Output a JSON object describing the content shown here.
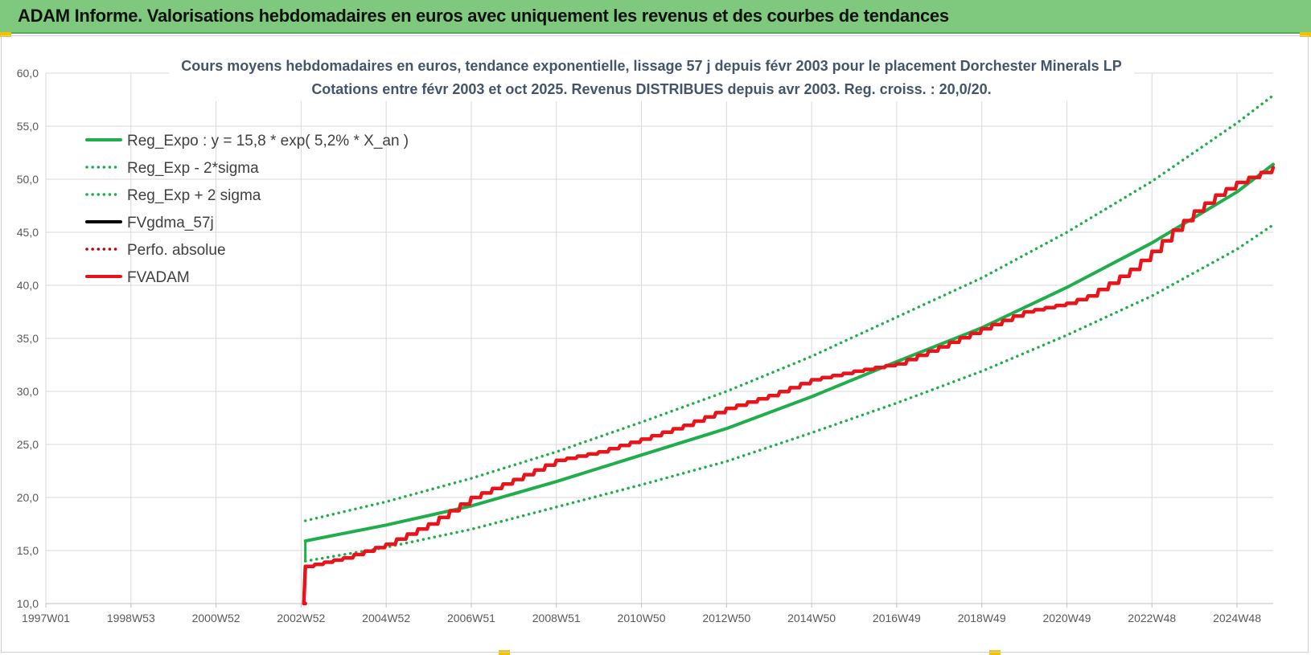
{
  "header": {
    "title": "ADAM Informe. Valorisations hebdomadaires en euros avec uniquement les revenus et des courbes de tendances"
  },
  "colors": {
    "banner": "#7ec97e",
    "reg_green": "#1fae4b",
    "fvadam_red": "#e8141c",
    "perf_red": "#c00000",
    "black": "#000000",
    "grid": "#d9d9d9"
  },
  "chart_data": {
    "type": "line",
    "title_lines": [
      "Cours moyens hebdomadaires en euros, tendance exponentielle, lissage 57 j depuis févr 2003 pour le placement Dorchester Minerals LP",
      "Cotations entre févr 2003 et oct 2025. Revenus DISTRIBUES depuis avr 2003. Reg. croiss. : 20,0/20."
    ],
    "xlabel": "",
    "ylabel": "",
    "ylim": [
      10,
      60
    ],
    "y_ticks": [
      "10,0",
      "15,0",
      "20,0",
      "25,0",
      "30,0",
      "35,0",
      "40,0",
      "45,0",
      "50,0",
      "55,0",
      "60,0"
    ],
    "x_ticks": [
      "1997W01",
      "1998W53",
      "2000W52",
      "2002W52",
      "2004W52",
      "2006W51",
      "2008W51",
      "2010W50",
      "2012W50",
      "2014W50",
      "2016W49",
      "2018W49",
      "2020W49",
      "2022W48",
      "2024W48"
    ],
    "x_tick_years": [
      1997.0,
      1999.0,
      2001.0,
      2003.0,
      2005.0,
      2007.0,
      2009.0,
      2011.0,
      2013.0,
      2015.0,
      2017.0,
      2019.0,
      2021.0,
      2023.0,
      2025.0
    ],
    "xlim": [
      1997.0,
      2025.85
    ],
    "grid": true,
    "legend_position": "top-left",
    "legend": [
      {
        "name": "Reg_Expo : y = 15,8 * exp( 5,2% *  X_an )",
        "style": "solid",
        "color": "#1fae4b"
      },
      {
        "name": "Reg_Exp - 2*sigma",
        "style": "dotted",
        "color": "#1fae4b"
      },
      {
        "name": "Reg_Exp + 2 sigma",
        "style": "dotted",
        "color": "#1fae4b"
      },
      {
        "name": "FVgdma_57j",
        "style": "solid",
        "color": "#000000"
      },
      {
        "name": "Perfo. absolue",
        "style": "dotted",
        "color": "#c00000"
      },
      {
        "name": "FVADAM",
        "style": "solid",
        "color": "#e8141c"
      }
    ],
    "series": [
      {
        "name": "Reg_Expo : y = 15,8 * exp( 5,2% *  X_an )",
        "style": "solid",
        "color": "#1fae4b",
        "x": [
          2003.1,
          2005.0,
          2007.0,
          2009.0,
          2011.0,
          2013.0,
          2015.0,
          2017.0,
          2019.0,
          2021.0,
          2023.0,
          2025.0,
          2025.85
        ],
        "y": [
          15.9,
          17.4,
          19.2,
          21.5,
          24.0,
          26.5,
          29.5,
          32.8,
          36.0,
          39.8,
          44.0,
          48.8,
          51.4
        ]
      },
      {
        "name": "Reg_Exp - 2*sigma",
        "style": "dotted",
        "color": "#1fae4b",
        "x": [
          2003.1,
          2005.0,
          2007.0,
          2009.0,
          2011.0,
          2013.0,
          2015.0,
          2017.0,
          2019.0,
          2021.0,
          2023.0,
          2025.0,
          2025.85
        ],
        "y": [
          14.0,
          15.3,
          17.0,
          19.1,
          21.2,
          23.4,
          26.1,
          28.9,
          31.9,
          35.3,
          39.0,
          43.4,
          45.7
        ]
      },
      {
        "name": "Reg_Exp + 2 sigma",
        "style": "dotted",
        "color": "#1fae4b",
        "x": [
          2003.1,
          2005.0,
          2007.0,
          2009.0,
          2011.0,
          2013.0,
          2015.0,
          2017.0,
          2019.0,
          2021.0,
          2023.0,
          2025.0,
          2025.85
        ],
        "y": [
          17.8,
          19.6,
          21.8,
          24.3,
          27.1,
          30.0,
          33.3,
          37.0,
          40.7,
          45.0,
          49.8,
          55.3,
          57.9
        ]
      },
      {
        "name": "FVADAM",
        "style": "solid",
        "color": "#e8141c",
        "x": [
          2003.1,
          2003.1,
          2004.0,
          2005.0,
          2006.0,
          2007.0,
          2008.0,
          2009.0,
          2010.0,
          2011.0,
          2012.0,
          2013.0,
          2014.0,
          2015.0,
          2016.0,
          2017.0,
          2018.0,
          2019.0,
          2020.0,
          2021.0,
          2021.5,
          2022.0,
          2022.5,
          2023.0,
          2023.5,
          2024.0,
          2024.5,
          2025.0,
          2025.85
        ],
        "y": [
          10.0,
          13.5,
          14.3,
          15.6,
          17.5,
          20.0,
          21.7,
          23.5,
          24.3,
          25.5,
          26.8,
          28.4,
          29.6,
          31.1,
          31.9,
          32.6,
          34.2,
          35.9,
          37.5,
          38.3,
          39.0,
          40.2,
          41.5,
          43.2,
          45.2,
          47.0,
          48.5,
          49.7,
          51.1
        ]
      },
      {
        "name": "Perfo. absolue",
        "style": "dotted",
        "color": "#c00000",
        "x": [
          2003.1,
          2004.0,
          2005.0,
          2006.0,
          2007.0,
          2008.0,
          2009.0,
          2010.0,
          2011.0,
          2012.0,
          2013.0,
          2014.0,
          2015.0,
          2016.0,
          2017.0,
          2018.0,
          2019.0,
          2020.0,
          2021.0,
          2021.5,
          2022.0,
          2022.5,
          2023.0,
          2023.5,
          2024.0,
          2024.5,
          2025.0,
          2025.85
        ],
        "y": [
          13.5,
          14.3,
          15.6,
          17.5,
          20.0,
          21.7,
          23.5,
          24.3,
          25.5,
          26.8,
          28.4,
          29.6,
          31.1,
          31.9,
          32.6,
          34.2,
          35.9,
          37.5,
          38.3,
          39.0,
          40.2,
          41.5,
          43.2,
          45.2,
          47.0,
          48.5,
          49.7,
          51.1
        ]
      }
    ]
  }
}
